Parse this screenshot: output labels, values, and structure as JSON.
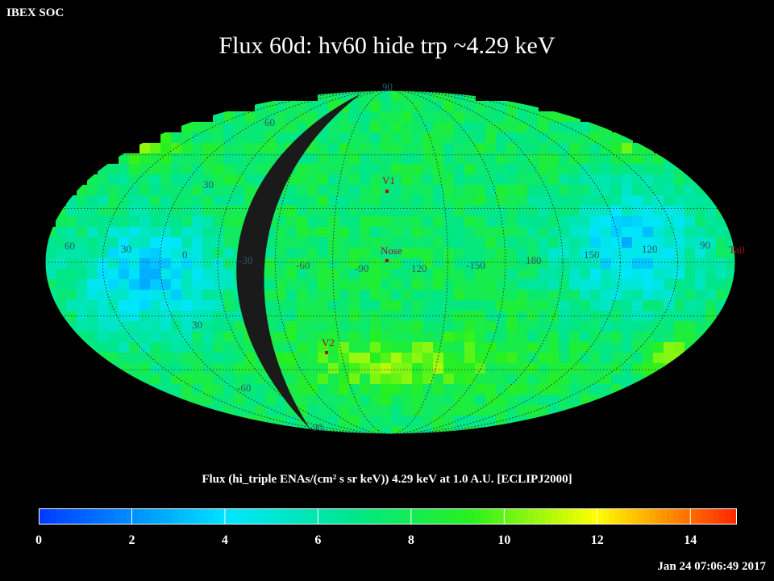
{
  "header": {
    "corner_label": "IBEX SOC",
    "title": "Flux   60d: hv60 hide trp ~4.29 keV"
  },
  "map": {
    "projection": "Mollweide",
    "grid_longitude_labels": [
      "60",
      "30",
      "0",
      "-30",
      "-60",
      "-90",
      "120",
      "-150",
      "180",
      "150",
      "120",
      "90"
    ],
    "grid_latitude_labels_top": [
      "90",
      "60",
      "30"
    ],
    "grid_latitude_labels_bottom": [
      "30",
      "-60",
      "-90"
    ],
    "markers": [
      {
        "name": "V1",
        "color": "#cc0000"
      },
      {
        "name": "Nose",
        "color": "#cc0000"
      },
      {
        "name": "V2",
        "color": "#cc0000"
      },
      {
        "name": "Tail",
        "color": "#cc0000"
      }
    ],
    "hidden_region_color": "#1a1a1a"
  },
  "colorbar": {
    "title": "Flux (hi_triple ENAs/(cm² s sr keV))  4.29 keV at 1.0 A.U. [ECLIPJ2000]",
    "min": 0,
    "max": 15,
    "ticks": [
      "0",
      "2",
      "4",
      "6",
      "8",
      "10",
      "12",
      "14"
    ]
  },
  "footer": {
    "timestamp": "Jan 24 07:06:49 2017"
  }
}
